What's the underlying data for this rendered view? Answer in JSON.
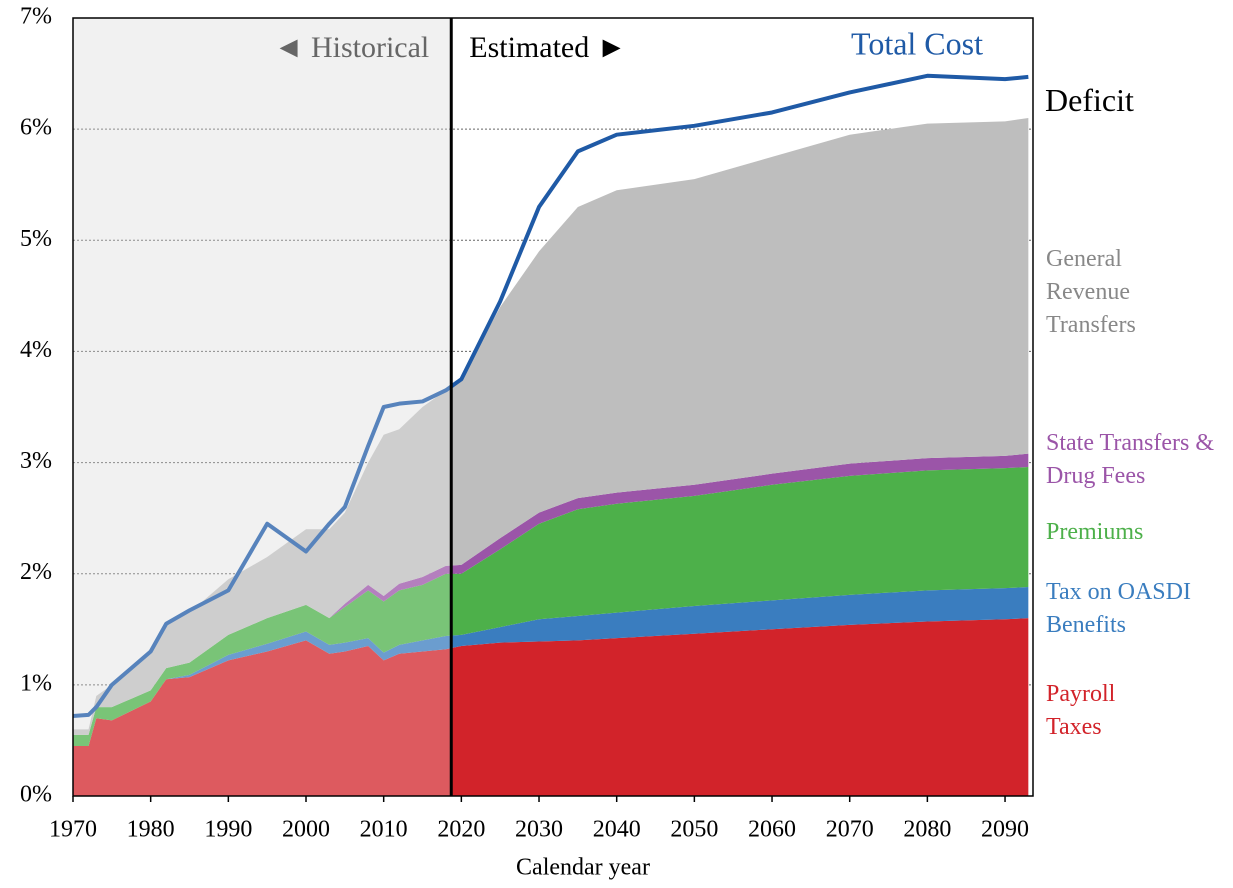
{
  "chart_data": {
    "type": "stacked_area",
    "xlabel": "Calendar year",
    "historical_label": "◄ Historical",
    "estimated_label": "Estimated ►",
    "deficit_label": "Deficit",
    "historical_end": 2018.7,
    "x": [
      1970,
      1972,
      1973,
      1975,
      1980,
      1982,
      1985,
      1990,
      1995,
      2000,
      2003,
      2005,
      2008,
      2010,
      2012,
      2015,
      2018,
      2020,
      2025,
      2030,
      2035,
      2040,
      2050,
      2060,
      2070,
      2080,
      2090,
      2093
    ],
    "series": [
      {
        "name": "Payroll Taxes",
        "color": "#d2232a",
        "values": [
          0.45,
          0.45,
          0.7,
          0.68,
          0.85,
          1.05,
          1.07,
          1.22,
          1.3,
          1.4,
          1.28,
          1.3,
          1.35,
          1.22,
          1.28,
          1.3,
          1.32,
          1.35,
          1.38,
          1.39,
          1.4,
          1.42,
          1.46,
          1.5,
          1.54,
          1.57,
          1.59,
          1.6
        ]
      },
      {
        "name": "Tax on OASDI Benefits",
        "color": "#3a7dbf",
        "values": [
          0,
          0,
          0,
          0,
          0,
          0,
          0.02,
          0.05,
          0.07,
          0.08,
          0.08,
          0.08,
          0.07,
          0.07,
          0.08,
          0.1,
          0.12,
          0.1,
          0.14,
          0.2,
          0.22,
          0.23,
          0.25,
          0.26,
          0.27,
          0.28,
          0.28,
          0.28
        ]
      },
      {
        "name": "Premiums",
        "color": "#4db04a",
        "values": [
          0.1,
          0.1,
          0.1,
          0.12,
          0.1,
          0.1,
          0.11,
          0.18,
          0.23,
          0.24,
          0.24,
          0.32,
          0.43,
          0.46,
          0.49,
          0.5,
          0.56,
          0.55,
          0.7,
          0.86,
          0.96,
          0.98,
          0.99,
          1.04,
          1.07,
          1.08,
          1.08,
          1.08
        ]
      },
      {
        "name": "State Transfers & Drug Fees",
        "color": "#9b55a8",
        "values": [
          0,
          0,
          0,
          0,
          0,
          0,
          0,
          0,
          0,
          0,
          0,
          0.03,
          0.05,
          0.05,
          0.06,
          0.07,
          0.07,
          0.08,
          0.1,
          0.1,
          0.1,
          0.1,
          0.1,
          0.1,
          0.11,
          0.11,
          0.11,
          0.12
        ]
      },
      {
        "name": "General Revenue Transfers",
        "color": "#bebebe",
        "values": [
          0.05,
          0.05,
          0.1,
          0.2,
          0.35,
          0.4,
          0.45,
          0.5,
          0.55,
          0.68,
          0.8,
          0.82,
          1.1,
          1.45,
          1.39,
          1.53,
          1.58,
          1.67,
          2.08,
          2.35,
          2.62,
          2.72,
          2.75,
          2.85,
          2.96,
          3.01,
          3.01,
          3.02
        ]
      }
    ],
    "line": {
      "name": "Total Cost",
      "color": "#1f5aa6",
      "values": [
        0.72,
        0.73,
        0.8,
        1.0,
        1.3,
        1.55,
        1.67,
        1.85,
        2.45,
        2.2,
        2.45,
        2.6,
        3.15,
        3.5,
        3.53,
        3.55,
        3.65,
        3.75,
        4.45,
        5.3,
        5.8,
        5.95,
        6.03,
        6.15,
        6.33,
        6.48,
        6.45,
        6.47
      ]
    },
    "xlim": [
      1970,
      2093.6
    ],
    "ylim": [
      0,
      7
    ],
    "xticks": [
      1970,
      1980,
      1990,
      2000,
      2010,
      2020,
      2030,
      2040,
      2050,
      2060,
      2070,
      2080,
      2090
    ],
    "yticks": [
      {
        "value": 0,
        "label": "0%"
      },
      {
        "value": 1,
        "label": "1%"
      },
      {
        "value": 2,
        "label": "2%"
      },
      {
        "value": 3,
        "label": "3%"
      },
      {
        "value": 4,
        "label": "4%"
      },
      {
        "value": 5,
        "label": "5%"
      },
      {
        "value": 6,
        "label": "6%"
      },
      {
        "value": 7,
        "label": "7%"
      }
    ],
    "grid": true
  }
}
